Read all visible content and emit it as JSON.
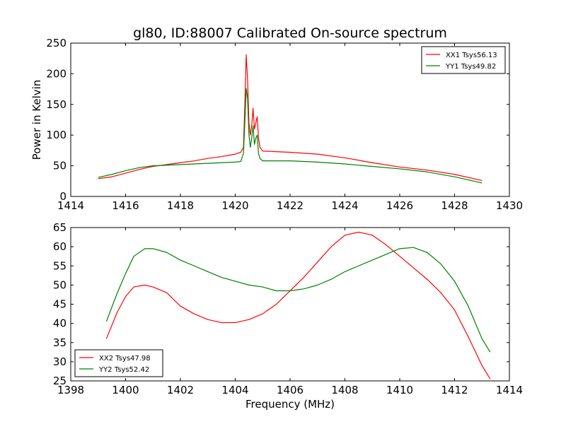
{
  "figure_title": "gl80, ID:88007 Calibrated On-source spectrum",
  "colors": {
    "red": "#ff0000",
    "green": "#008000"
  },
  "chart_data": [
    {
      "type": "line",
      "title": "gl80, ID:88007 Calibrated On-source spectrum",
      "xlabel": "",
      "ylabel": "Power in Kelvin",
      "xlim": [
        1414,
        1430
      ],
      "ylim": [
        0,
        250
      ],
      "xticks": [
        1414,
        1416,
        1418,
        1420,
        1422,
        1424,
        1426,
        1428,
        1430
      ],
      "yticks": [
        0,
        50,
        100,
        150,
        200,
        250
      ],
      "legend_position": "top-right",
      "grid": false,
      "series": [
        {
          "name": "XX1 Tsys56.13",
          "color": "#ff0000",
          "points": [
            [
              1415.0,
              29
            ],
            [
              1415.5,
              32
            ],
            [
              1416.0,
              38
            ],
            [
              1416.5,
              44
            ],
            [
              1417.0,
              49
            ],
            [
              1417.5,
              52
            ],
            [
              1418.0,
              55
            ],
            [
              1418.5,
              58
            ],
            [
              1419.0,
              62
            ],
            [
              1419.5,
              65
            ],
            [
              1420.0,
              69
            ],
            [
              1420.2,
              72
            ],
            [
              1420.3,
              80
            ],
            [
              1420.35,
              150
            ],
            [
              1420.4,
              231
            ],
            [
              1420.45,
              190
            ],
            [
              1420.5,
              120
            ],
            [
              1420.55,
              100
            ],
            [
              1420.6,
              115
            ],
            [
              1420.65,
              144
            ],
            [
              1420.7,
              110
            ],
            [
              1420.75,
              120
            ],
            [
              1420.8,
              130
            ],
            [
              1420.85,
              95
            ],
            [
              1420.9,
              80
            ],
            [
              1421.0,
              74
            ],
            [
              1421.5,
              73
            ],
            [
              1422.0,
              72
            ],
            [
              1423.0,
              69
            ],
            [
              1424.0,
              63
            ],
            [
              1425.0,
              55
            ],
            [
              1426.0,
              48
            ],
            [
              1427.0,
              43
            ],
            [
              1428.0,
              36
            ],
            [
              1429.0,
              26
            ]
          ]
        },
        {
          "name": "YY1 Tsys49.82",
          "color": "#008000",
          "points": [
            [
              1415.0,
              31
            ],
            [
              1415.5,
              36
            ],
            [
              1416.0,
              42
            ],
            [
              1416.5,
              47
            ],
            [
              1417.0,
              50
            ],
            [
              1417.5,
              51
            ],
            [
              1418.0,
              52
            ],
            [
              1418.5,
              53
            ],
            [
              1419.0,
              54
            ],
            [
              1419.5,
              55
            ],
            [
              1420.0,
              56
            ],
            [
              1420.2,
              57
            ],
            [
              1420.3,
              70
            ],
            [
              1420.35,
              120
            ],
            [
              1420.4,
              176
            ],
            [
              1420.45,
              160
            ],
            [
              1420.5,
              100
            ],
            [
              1420.55,
              80
            ],
            [
              1420.6,
              95
            ],
            [
              1420.65,
              115
            ],
            [
              1420.7,
              85
            ],
            [
              1420.75,
              95
            ],
            [
              1420.8,
              100
            ],
            [
              1420.85,
              70
            ],
            [
              1420.9,
              62
            ],
            [
              1421.0,
              58
            ],
            [
              1422.0,
              58
            ],
            [
              1423.0,
              56
            ],
            [
              1424.0,
              53
            ],
            [
              1425.0,
              49
            ],
            [
              1426.0,
              45
            ],
            [
              1427.0,
              40
            ],
            [
              1428.0,
              32
            ],
            [
              1429.0,
              22
            ]
          ]
        }
      ]
    },
    {
      "type": "line",
      "title": "",
      "xlabel": "Frequency (MHz)",
      "ylabel": "",
      "xlim": [
        1398,
        1414
      ],
      "ylim": [
        25,
        65
      ],
      "xticks": [
        1398,
        1400,
        1402,
        1404,
        1406,
        1408,
        1410,
        1412,
        1414
      ],
      "yticks": [
        25,
        30,
        35,
        40,
        45,
        50,
        55,
        60,
        65
      ],
      "legend_position": "bottom-left",
      "grid": false,
      "series": [
        {
          "name": "XX2 Tsys47.98",
          "color": "#ff0000",
          "points": [
            [
              1399.3,
              36
            ],
            [
              1399.7,
              43
            ],
            [
              1400.0,
              47
            ],
            [
              1400.3,
              49.5
            ],
            [
              1400.7,
              50
            ],
            [
              1401.0,
              49.5
            ],
            [
              1401.5,
              48
            ],
            [
              1402.0,
              44.5
            ],
            [
              1402.5,
              42.5
            ],
            [
              1403.0,
              41
            ],
            [
              1403.5,
              40.2
            ],
            [
              1404.0,
              40.2
            ],
            [
              1404.5,
              41
            ],
            [
              1405.0,
              42.5
            ],
            [
              1405.5,
              45
            ],
            [
              1406.0,
              48.5
            ],
            [
              1406.5,
              52
            ],
            [
              1407.0,
              56
            ],
            [
              1407.5,
              60
            ],
            [
              1408.0,
              63
            ],
            [
              1408.5,
              63.8
            ],
            [
              1409.0,
              63
            ],
            [
              1409.5,
              60.5
            ],
            [
              1410.0,
              57.5
            ],
            [
              1410.5,
              54.5
            ],
            [
              1411.0,
              51.5
            ],
            [
              1411.5,
              48
            ],
            [
              1412.0,
              43.5
            ],
            [
              1412.5,
              36.5
            ],
            [
              1413.0,
              29
            ],
            [
              1413.3,
              25.5
            ]
          ]
        },
        {
          "name": "YY2 Tsys52.42",
          "color": "#008000",
          "points": [
            [
              1399.3,
              40.5
            ],
            [
              1399.7,
              48
            ],
            [
              1400.0,
              53
            ],
            [
              1400.3,
              57.5
            ],
            [
              1400.7,
              59.5
            ],
            [
              1401.0,
              59.5
            ],
            [
              1401.5,
              58.5
            ],
            [
              1402.0,
              56.5
            ],
            [
              1402.5,
              55
            ],
            [
              1403.0,
              53.5
            ],
            [
              1403.5,
              52
            ],
            [
              1404.0,
              51
            ],
            [
              1404.5,
              50
            ],
            [
              1405.0,
              49.5
            ],
            [
              1405.5,
              48.5
            ],
            [
              1406.0,
              48.5
            ],
            [
              1406.5,
              49
            ],
            [
              1407.0,
              50
            ],
            [
              1407.5,
              51.5
            ],
            [
              1408.0,
              53.5
            ],
            [
              1408.5,
              55
            ],
            [
              1409.0,
              56.5
            ],
            [
              1409.5,
              58
            ],
            [
              1410.0,
              59.5
            ],
            [
              1410.5,
              59.8
            ],
            [
              1411.0,
              58.5
            ],
            [
              1411.5,
              55.5
            ],
            [
              1412.0,
              51
            ],
            [
              1412.5,
              44.5
            ],
            [
              1413.0,
              36
            ],
            [
              1413.3,
              32.5
            ]
          ]
        }
      ]
    }
  ]
}
